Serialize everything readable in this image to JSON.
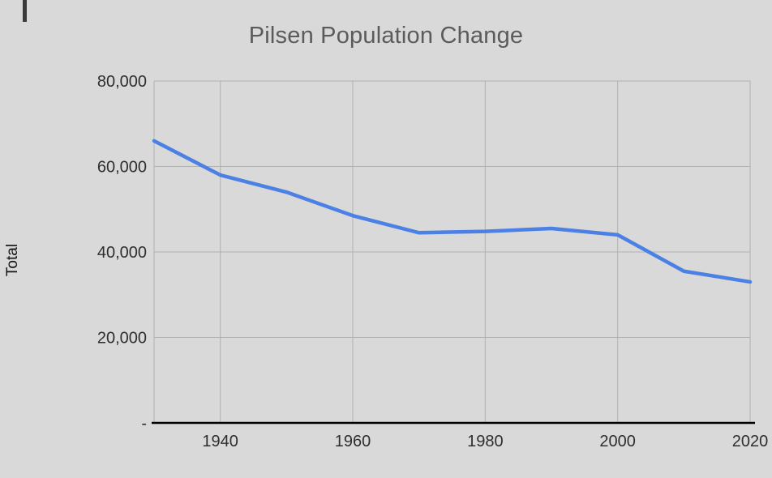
{
  "chart_data": {
    "type": "line",
    "title": "Pilsen Population Change",
    "ylabel": "Total",
    "xlabel": "",
    "series": [
      {
        "name": "Total",
        "x": [
          1930,
          1940,
          1950,
          1960,
          1970,
          1980,
          1990,
          2000,
          2010,
          2020
        ],
        "values": [
          66000,
          58000,
          54000,
          48500,
          44500,
          44800,
          45500,
          44000,
          35500,
          33000
        ]
      }
    ],
    "xlim": [
      1930,
      2020
    ],
    "ylim": [
      0,
      80000
    ],
    "x_ticks": [
      1940,
      1960,
      1980,
      2000,
      2020
    ],
    "x_tick_labels": [
      "1940",
      "1960",
      "1980",
      "2000",
      "2020"
    ],
    "y_ticks": [
      0,
      20000,
      40000,
      60000,
      80000
    ],
    "y_tick_labels": [
      "-",
      "20,000",
      "40,000",
      "60,000",
      "80,000"
    ],
    "grid": true,
    "legend_position": "none",
    "colors": {
      "line": "#4b80e4",
      "grid": "#b1b1b1",
      "axis": "#000000",
      "background": "#d9d9d9",
      "title": "#5b5b5b",
      "tick_text": "#2e2e2e"
    }
  }
}
